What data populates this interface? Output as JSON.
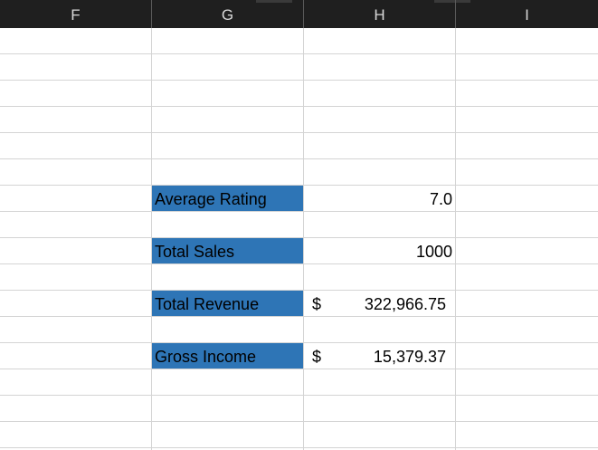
{
  "columns": [
    "F",
    "G",
    "H",
    "I"
  ],
  "metrics": [
    {
      "label": "Average Rating",
      "value": "7.0"
    },
    {
      "label": "Total Sales",
      "value": "1000"
    },
    {
      "label": "Total Revenue",
      "currency": "$",
      "value": "322,966.75"
    },
    {
      "label": "Gross Income",
      "currency": "$",
      "value": "15,379.37"
    }
  ],
  "colors": {
    "header_bg": "#1f1f1f",
    "header_text": "#d9d9d9",
    "label_fill": "#2e75b6",
    "gridline": "#d4d4d4"
  }
}
